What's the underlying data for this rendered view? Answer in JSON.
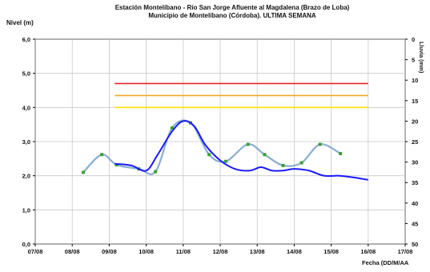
{
  "chart_data": {
    "type": "line",
    "title_line1": "Estación Montelíbano  - Río San Jorge Afluente al Magdalena (Brazo de Loba)",
    "title_line2": "Municipio de Montelíbano (Córdoba). ULTIMA SEMANA",
    "ylabel": "Nivel (m)",
    "xlabel": "Fecha (DD/M/AA",
    "y2label": "Lluvia (mm)",
    "ylim": [
      0,
      6
    ],
    "y_ticks": [
      "0,0",
      "1,0",
      "2,0",
      "3,0",
      "4,0",
      "5,0",
      "6,0"
    ],
    "y2lim": [
      0,
      50
    ],
    "y2_ticks": [
      "0",
      "5",
      "10",
      "15",
      "20",
      "25",
      "30",
      "35",
      "40",
      "45",
      "50"
    ],
    "x_ticks": [
      "07/08",
      "08/08",
      "09/08",
      "10/08",
      "11/08",
      "12/08",
      "13/08",
      "14/08",
      "15/08",
      "16/08",
      "17/08"
    ],
    "grid": true,
    "thresholds": [
      {
        "level": 4.7,
        "x_start": 2.15,
        "x_end": 9.0,
        "color": "#e8242a"
      },
      {
        "level": 4.35,
        "x_start": 2.15,
        "x_end": 9.0,
        "color": "#f5a623"
      },
      {
        "level": 4.0,
        "x_start": 2.15,
        "x_end": 9.0,
        "color": "#ffe100"
      }
    ],
    "series": [
      {
        "color": "#8aaed0",
        "marker_color": "#3aa035",
        "markers": true,
        "x": [
          1.3,
          1.8,
          2.2,
          2.8,
          3.25,
          3.7,
          4.2,
          4.7,
          5.15,
          5.75,
          6.2,
          6.7,
          7.2,
          7.7,
          8.25,
          8.6
        ],
        "y": [
          2.1,
          2.62,
          2.32,
          2.2,
          2.12,
          3.4,
          3.55,
          2.62,
          2.42,
          2.92,
          2.62,
          2.3,
          2.38,
          2.92,
          2.65,
          null
        ]
      },
      {
        "color": "#1a1aff",
        "markers": false,
        "x": [
          2.15,
          2.6,
          3.0,
          3.3,
          3.7,
          4.0,
          4.3,
          4.6,
          5.0,
          5.4,
          5.8,
          6.1,
          6.4,
          6.7,
          7.0,
          7.4,
          7.8,
          8.2,
          8.6,
          9.0
        ],
        "y": [
          2.35,
          2.3,
          2.15,
          2.6,
          3.3,
          3.6,
          3.45,
          2.9,
          2.45,
          2.2,
          2.15,
          2.25,
          2.15,
          2.15,
          2.2,
          2.15,
          2.0,
          2.0,
          1.95,
          1.88
        ]
      }
    ]
  }
}
